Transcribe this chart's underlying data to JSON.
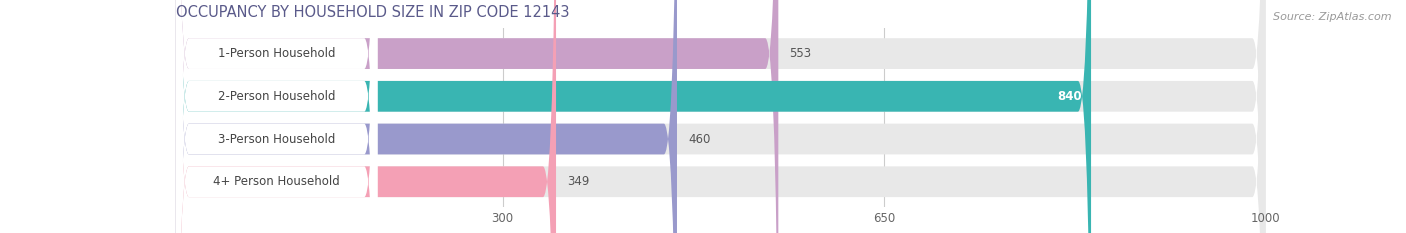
{
  "title": "OCCUPANCY BY HOUSEHOLD SIZE IN ZIP CODE 12143",
  "source": "Source: ZipAtlas.com",
  "categories": [
    "1-Person Household",
    "2-Person Household",
    "3-Person Household",
    "4+ Person Household"
  ],
  "values": [
    553,
    840,
    460,
    349
  ],
  "bar_colors": [
    "#c9a0c8",
    "#39b5b2",
    "#9999cc",
    "#f4a0b5"
  ],
  "label_colors": [
    "#555555",
    "#ffffff",
    "#555555",
    "#555555"
  ],
  "xlim": [
    0,
    1000
  ],
  "xticks": [
    300,
    650,
    1000
  ],
  "background_color": "#ffffff",
  "bar_bg_color": "#e8e8e8",
  "figsize": [
    14.06,
    2.33
  ],
  "dpi": 100,
  "title_color": "#5a5a8a",
  "source_color": "#999999"
}
